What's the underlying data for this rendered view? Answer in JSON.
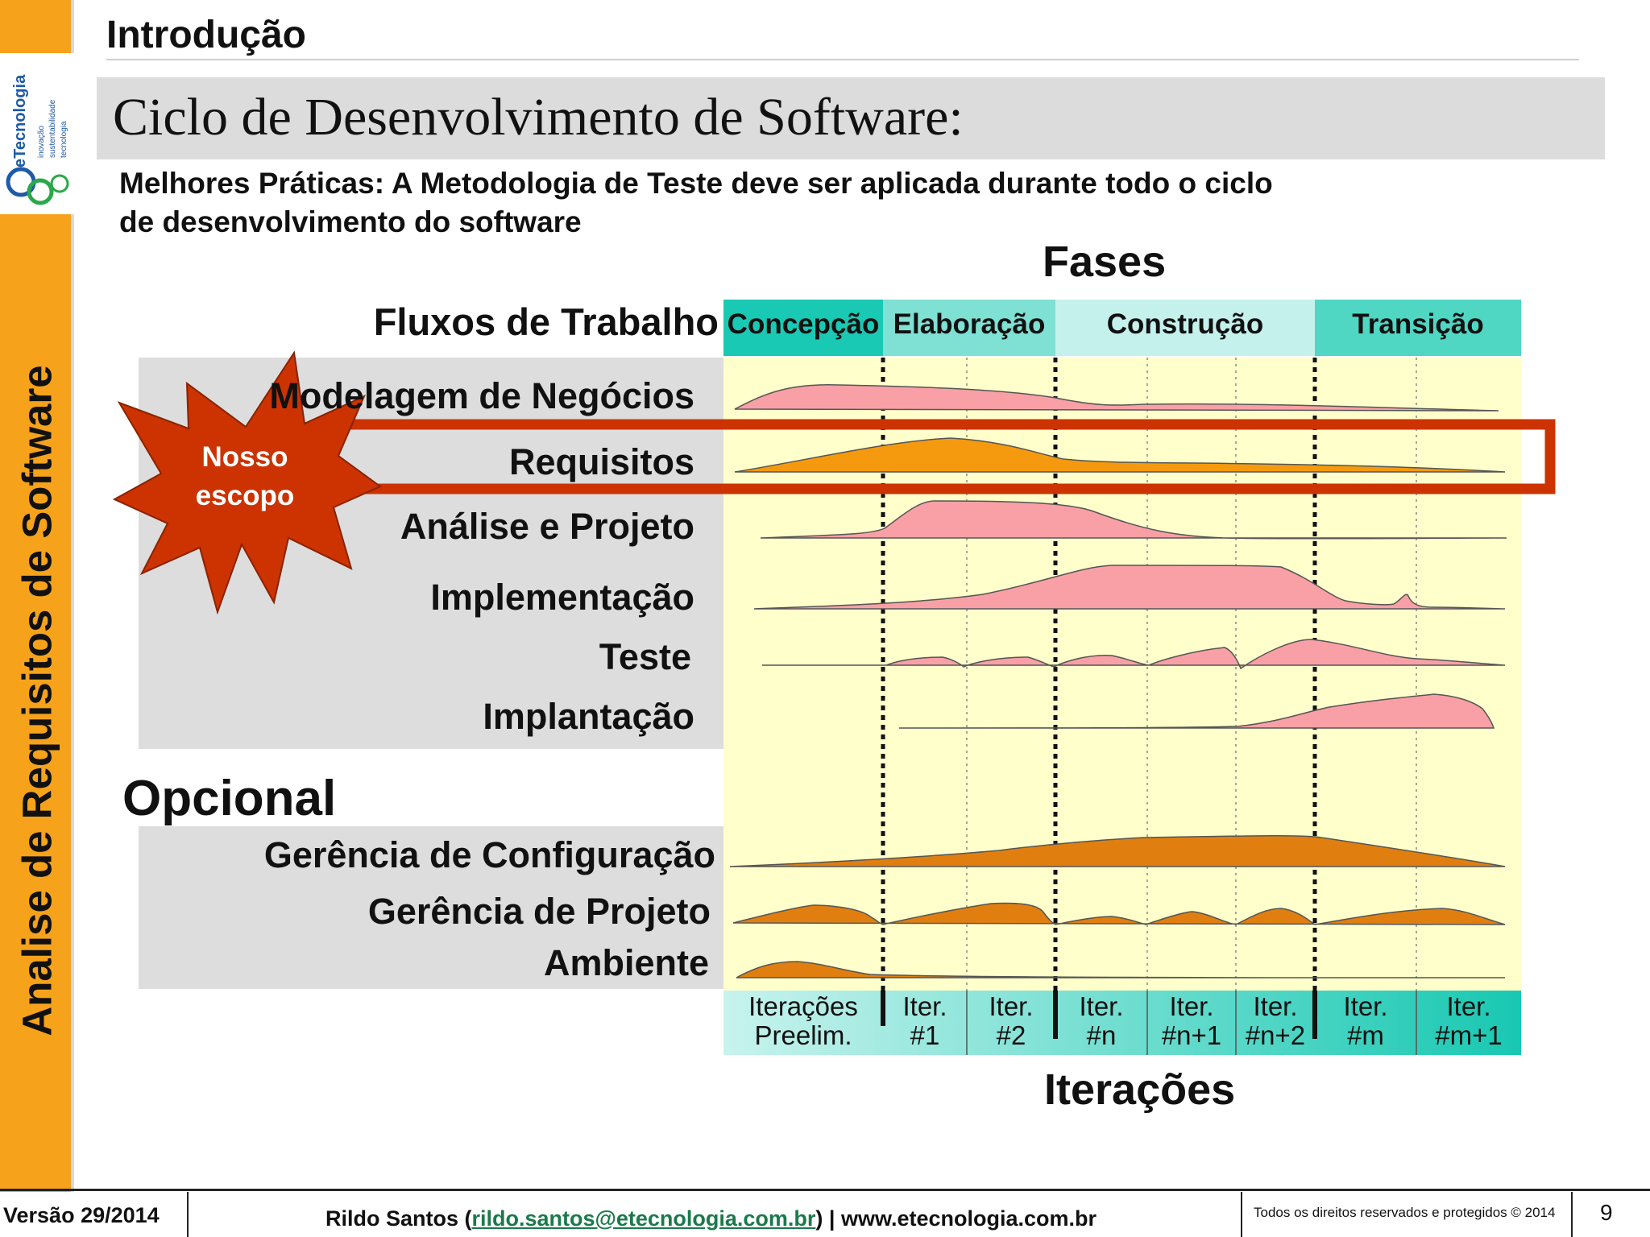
{
  "sidebar": {
    "vertical_title": "Analise de Requisitos de Software",
    "logo": {
      "name": "eTecnologia",
      "tag1": "inovação",
      "tag2": "sustentabilidade",
      "tag3": "tecnologia"
    }
  },
  "header": {
    "section": "Introdução",
    "title": "Ciclo de Desenvolvimento de Software:",
    "subtitle_line1": "Melhores Práticas: A Metodologia de Teste deve ser aplicada durante todo o ciclo",
    "subtitle_line2": "de desenvolvimento do software"
  },
  "diagram": {
    "phases_title": "Fases",
    "workflows_title": "Fluxos de Trabalho",
    "iterations_title": "Iterações",
    "optional_title": "Opcional",
    "scope_badge_line1": "Nosso",
    "scope_badge_line2": "escopo",
    "phases": [
      "Concepção",
      "Elaboração",
      "Construção",
      "Transição"
    ],
    "workflows": [
      "Modelagem de Negócios",
      "Requisitos",
      "Análise e Projeto",
      "Implementação",
      "Teste",
      "Implantação"
    ],
    "support_workflows": [
      "Gerência de Configuração",
      "Gerência de Projeto",
      "Ambiente"
    ],
    "iterations": [
      {
        "l1": "Iterações",
        "l2": "Preelim."
      },
      {
        "l1": "Iter.",
        "l2": "#1"
      },
      {
        "l1": "Iter.",
        "l2": "#2"
      },
      {
        "l1": "Iter.",
        "l2": "#n"
      },
      {
        "l1": "Iter.",
        "l2": "#n+1"
      },
      {
        "l1": "Iter.",
        "l2": "#n+2"
      },
      {
        "l1": "Iter.",
        "l2": "#m"
      },
      {
        "l1": "Iter.",
        "l2": "#m+1"
      }
    ],
    "colors": {
      "pink": "#f8a0a6",
      "orange": "#f59a0f",
      "dark_orange": "#e07f10",
      "highlight": "#cc3300",
      "teal": "#19c9b4",
      "chart_bg": "#ffffcc"
    }
  },
  "footer": {
    "version": "Versão 29/2014",
    "author_prefix": "Rildo Santos (",
    "email": "rildo.santos@etecnologia.com.br",
    "author_suffix": ") | www.etecnologia.com.br",
    "rights": "Todos os direitos reservados e protegidos © 2014",
    "page": "9"
  }
}
